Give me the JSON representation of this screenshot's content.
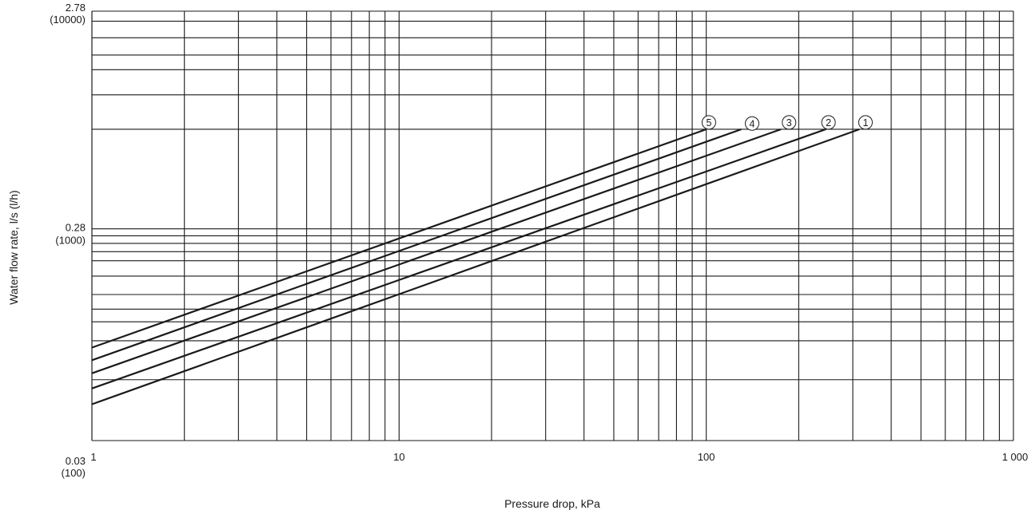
{
  "chart_data": {
    "type": "line",
    "x_scale": "log",
    "y_scale": "log",
    "xlim": [
      1,
      1000
    ],
    "ylim": [
      0.03,
      2.78
    ],
    "grid": true,
    "xlabel": "Pressure drop, kPa",
    "ylabel": "Water flow rate, l/s (l/h)",
    "x_tick_labels": [
      {
        "value": 1,
        "label": "1"
      },
      {
        "value": 10,
        "label": "10"
      },
      {
        "value": 100,
        "label": "100"
      },
      {
        "value": 1000,
        "label": "1 000"
      }
    ],
    "y_tick_labels": [
      {
        "value": 2.78,
        "label": "2.78",
        "sublabel": "(10000)"
      },
      {
        "value": 0.28,
        "label": "0.28",
        "sublabel": "(1000)"
      },
      {
        "value": 0.03,
        "label": "0.03",
        "sublabel": "(100)"
      }
    ],
    "x_grid_values": [
      1,
      2,
      3,
      4,
      5,
      6,
      7,
      8,
      9,
      10,
      20,
      30,
      40,
      50,
      60,
      70,
      80,
      90,
      100,
      200,
      300,
      400,
      500,
      600,
      700,
      800,
      900,
      1000
    ],
    "y_grid_values": [
      0.057,
      0.086,
      0.105,
      0.12,
      0.14,
      0.17,
      0.2,
      0.22,
      0.24,
      0.26,
      0.28,
      0.8,
      1.15,
      1.5,
      1.75,
      2.1,
      2.5,
      2.78
    ],
    "series": [
      {
        "name": "1",
        "x": [
          1,
          315
        ],
        "y": [
          0.044,
          0.8
        ]
      },
      {
        "name": "2",
        "x": [
          1,
          245
        ],
        "y": [
          0.052,
          0.8
        ]
      },
      {
        "name": "3",
        "x": [
          1,
          175
        ],
        "y": [
          0.061,
          0.8
        ]
      },
      {
        "name": "4",
        "x": [
          1,
          130
        ],
        "y": [
          0.07,
          0.8
        ]
      },
      {
        "name": "5",
        "x": [
          1,
          100
        ],
        "y": [
          0.08,
          0.8
        ]
      }
    ],
    "series_label_points": [
      {
        "name": "1",
        "x": 330,
        "y": 0.86
      },
      {
        "name": "2",
        "x": 250,
        "y": 0.86
      },
      {
        "name": "3",
        "x": 186,
        "y": 0.86
      },
      {
        "name": "4",
        "x": 141,
        "y": 0.85
      },
      {
        "name": "5",
        "x": 102,
        "y": 0.86
      }
    ]
  }
}
